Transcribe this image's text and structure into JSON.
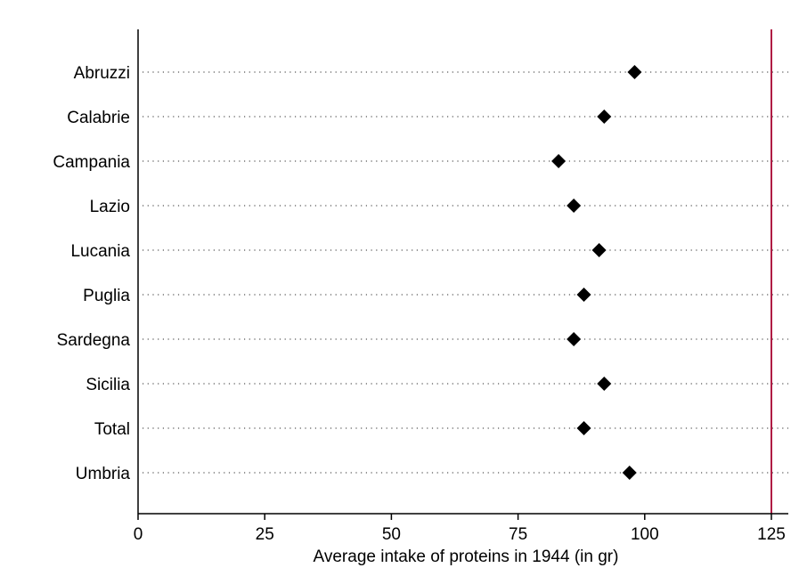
{
  "chart_data": {
    "type": "scatter",
    "marker": "diamond",
    "categories": [
      "Abruzzi",
      "Calabrie",
      "Campania",
      "Lazio",
      "Lucania",
      "Puglia",
      "Sardegna",
      "Sicilia",
      "Total",
      "Umbria"
    ],
    "values": [
      98,
      92,
      83,
      86,
      91,
      88,
      86,
      92,
      88,
      97
    ],
    "xlabel": "Average intake of proteins in 1944 (in gr)",
    "ylabel": "",
    "xlim": [
      0,
      125
    ],
    "xticks": [
      "0",
      "25",
      "50",
      "75",
      "100",
      "125"
    ],
    "reference_line": 125,
    "grid": "dotted horizontal",
    "colors": {
      "marker": "#000000",
      "reference_line": "#b01c44",
      "grid": "#555555",
      "axis": "#000000"
    }
  }
}
